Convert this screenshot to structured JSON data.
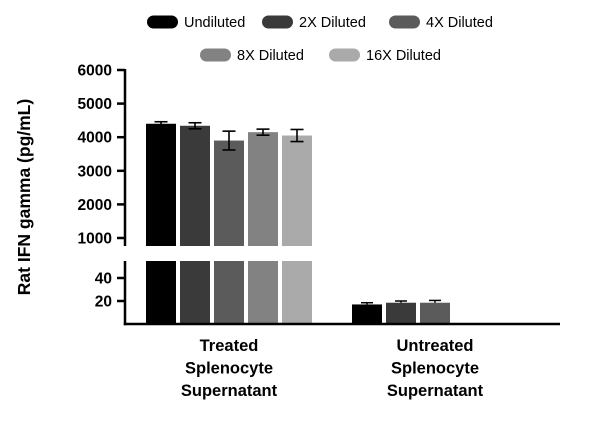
{
  "chart_data": {
    "type": "bar",
    "title": "",
    "ylabel": "Rat IFN gamma (pg/mL)",
    "xlabel": "",
    "axis_broken": true,
    "groups": [
      {
        "name": "treated",
        "label_lines": [
          "Treated",
          "Splenocyte",
          "Supernatant"
        ]
      },
      {
        "name": "untreated",
        "label_lines": [
          "Untreated",
          "Splenocyte",
          "Supernatant"
        ]
      }
    ],
    "series": [
      {
        "name": "Undiluted",
        "color": "#000000",
        "values": [
          4400,
          17.0
        ],
        "errors": [
          60,
          1.5
        ]
      },
      {
        "name": "2X Diluted",
        "color": "#3a3a3a",
        "values": [
          4340,
          18.5
        ],
        "errors": [
          90,
          1.5
        ]
      },
      {
        "name": "4X Diluted",
        "color": "#5b5b5b",
        "values": [
          3900,
          18.5
        ],
        "errors": [
          280,
          2.0
        ]
      },
      {
        "name": "8X Diluted",
        "color": "#828282",
        "values": [
          4150,
          0
        ],
        "errors": [
          90,
          0
        ]
      },
      {
        "name": "16X Diluted",
        "color": "#aaaaaa",
        "values": [
          4050,
          0
        ],
        "errors": [
          180,
          0
        ]
      }
    ],
    "axis": {
      "upper": {
        "min": 1000,
        "max": 6000,
        "ticks": [
          6000,
          5000,
          4000,
          3000,
          2000,
          1000
        ]
      },
      "lower": {
        "min": 0,
        "max": 55,
        "ticks": [
          40,
          20
        ]
      }
    },
    "legend": {
      "rows": [
        [
          "Undiluted",
          "2X Diluted",
          "4X Diluted"
        ],
        [
          "8X Diluted",
          "16X Diluted"
        ]
      ]
    },
    "colors": {
      "axis": "#000000",
      "error_bar": "#000000",
      "background": "#ffffff"
    }
  }
}
